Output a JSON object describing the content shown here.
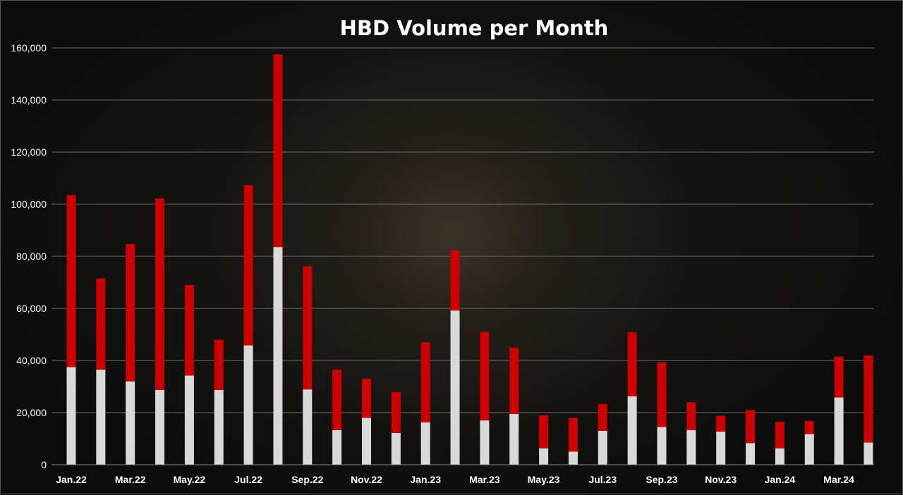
{
  "chart_data": {
    "type": "bar",
    "stacked": true,
    "title": "HBD Volume per Month",
    "xlabel": "",
    "ylabel": "",
    "ylim": [
      0,
      160000
    ],
    "yticks": [
      0,
      20000,
      40000,
      60000,
      80000,
      100000,
      120000,
      140000,
      160000
    ],
    "ytick_labels": [
      "0",
      "20,000",
      "40,000",
      "60,000",
      "80,000",
      "100,000",
      "120,000",
      "140,000",
      "160,000"
    ],
    "grid": true,
    "legend": "none",
    "categories": [
      "Jan.22",
      "Feb.22",
      "Mar.22",
      "Apr.22",
      "May.22",
      "Jun.22",
      "Jul.22",
      "Aug.22",
      "Sep.22",
      "Oct.22",
      "Nov.22",
      "Dec.22",
      "Jan.23",
      "Feb.23",
      "Mar.23",
      "Apr.23",
      "May.23",
      "Jun.23",
      "Jul.23",
      "Aug.23",
      "Sep.23",
      "Oct.23",
      "Nov.23",
      "Dec.23",
      "Jan.24",
      "Feb.24",
      "Mar.24",
      "Apr.24"
    ],
    "shown_labels": [
      "Jan.22",
      "Mar.22",
      "May.22",
      "Jul.22",
      "Sep.22",
      "Nov.22",
      "Jan.23",
      "Mar.23",
      "May.23",
      "Jul.23",
      "Sep.23",
      "Nov.23",
      "Jan.24",
      "Mar.24"
    ],
    "series": [
      {
        "color": "#d9d9d9",
        "values": [
          37500,
          36500,
          32000,
          28700,
          34200,
          28700,
          45800,
          83500,
          28900,
          13300,
          18000,
          12200,
          16300,
          59200,
          17000,
          19500,
          6300,
          5000,
          13000,
          26300,
          14500,
          13300,
          12700,
          8300,
          6300,
          11800,
          25800,
          8500
        ]
      },
      {
        "color": "#cc0000",
        "values": [
          66000,
          35000,
          52700,
          73500,
          34800,
          19300,
          61500,
          74000,
          47300,
          23200,
          15000,
          15700,
          30700,
          23200,
          34000,
          25400,
          12700,
          13000,
          10300,
          24500,
          24800,
          10700,
          6100,
          12700,
          10200,
          5000,
          15700,
          33500
        ]
      }
    ]
  }
}
